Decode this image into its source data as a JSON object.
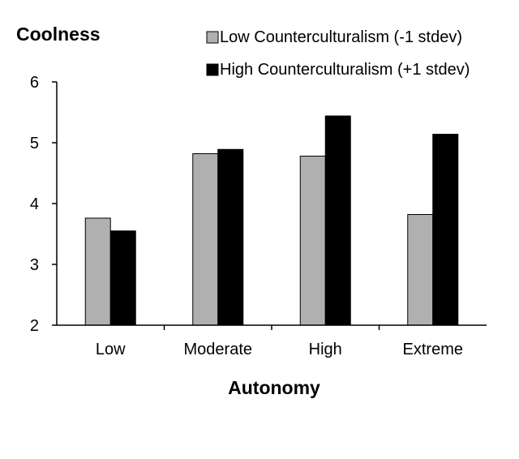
{
  "chart_data": {
    "type": "bar",
    "ylabel": "Coolness",
    "xlabel": "Autonomy",
    "ylim": [
      2,
      6
    ],
    "yticks": [
      2,
      3,
      4,
      5,
      6
    ],
    "grid": false,
    "legend_position": "top-right",
    "categories": [
      "Low",
      "Moderate",
      "High",
      "Extreme"
    ],
    "series": [
      {
        "name": "Low Counterculturalism (-1 stdev)",
        "color": "#b0b0b0",
        "values": [
          3.76,
          4.82,
          4.78,
          3.82
        ]
      },
      {
        "name": "High Counterculturalism (+1 stdev)",
        "color": "#000000",
        "values": [
          3.55,
          4.89,
          5.44,
          5.14
        ]
      }
    ]
  }
}
